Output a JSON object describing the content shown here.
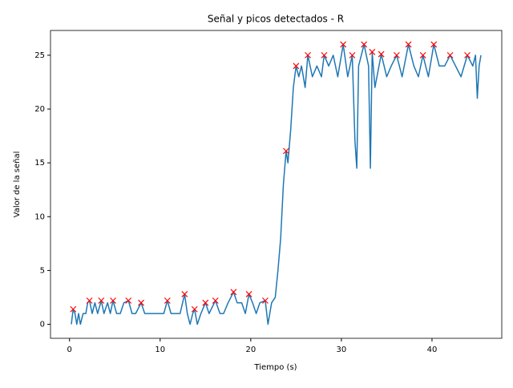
{
  "chart_data": {
    "type": "line",
    "title": "Señal y picos detectados - R",
    "x_label": "Tiempo (s)",
    "y_label": "Valor de la señal",
    "xlim": [
      -2.1,
      47.7
    ],
    "ylim": [
      -1.3,
      27.3
    ],
    "xticks": [
      0,
      10,
      20,
      30,
      40
    ],
    "yticks": [
      0,
      5,
      10,
      15,
      20,
      25
    ],
    "grid": false,
    "series": [
      {
        "color": "#1f77b4",
        "marker": "none",
        "x": [
          0.2,
          0.4,
          0.6,
          0.8,
          1.0,
          1.2,
          1.5,
          1.8,
          2.0,
          2.2,
          2.5,
          2.8,
          3.1,
          3.5,
          3.8,
          4.2,
          4.5,
          4.8,
          5.2,
          5.6,
          6.0,
          6.5,
          6.9,
          7.3,
          7.9,
          8.3,
          8.8,
          9.2,
          9.6,
          10.0,
          10.4,
          10.8,
          11.2,
          11.7,
          12.2,
          12.7,
          13.0,
          13.3,
          13.6,
          13.8,
          14.1,
          14.5,
          15.0,
          15.4,
          16.1,
          16.6,
          17.0,
          17.5,
          18.1,
          18.5,
          19.0,
          19.4,
          19.8,
          20.2,
          20.6,
          21.0,
          21.6,
          21.9,
          22.3,
          22.7,
          23.0,
          23.3,
          23.6,
          23.9,
          24.1,
          24.4,
          24.7,
          25.0,
          25.3,
          25.6,
          26.0,
          26.3,
          26.8,
          27.3,
          27.8,
          28.1,
          28.6,
          29.1,
          29.6,
          30.2,
          30.7,
          31.2,
          31.5,
          31.7,
          31.9,
          32.5,
          33.0,
          33.2,
          33.4,
          33.7,
          34.4,
          35.0,
          35.5,
          36.1,
          36.7,
          37.4,
          38.0,
          38.5,
          39.0,
          39.6,
          40.2,
          40.8,
          41.4,
          42.0,
          42.6,
          43.2,
          43.9,
          44.5,
          44.8,
          45.0,
          45.2,
          45.4
        ],
        "values": [
          0,
          1.4,
          1,
          0,
          1,
          0,
          1,
          1,
          2,
          2.2,
          1,
          2,
          1,
          2.2,
          1,
          2,
          1,
          2.2,
          1,
          1,
          2,
          2.2,
          1,
          1,
          2,
          1,
          1,
          1,
          1,
          1,
          1,
          2.2,
          1,
          1,
          1,
          2.8,
          1,
          0,
          1,
          1.4,
          0,
          1,
          2,
          1,
          2.2,
          1,
          1,
          2,
          3,
          2,
          2,
          1,
          2.8,
          2,
          1,
          2,
          2.2,
          0,
          2,
          2.5,
          5,
          8,
          13,
          16.1,
          15,
          18,
          22,
          24,
          23,
          24,
          22,
          25,
          23,
          24,
          23,
          25,
          24,
          25,
          23,
          26,
          23,
          25,
          17,
          14.5,
          24,
          26,
          24,
          14.5,
          25.3,
          22,
          25.1,
          23,
          24,
          25,
          23,
          26,
          24,
          23,
          25,
          23,
          26,
          24,
          24,
          25,
          24,
          23,
          25,
          24,
          25,
          21,
          24,
          25
        ]
      },
      {
        "color": "#ff0000",
        "marker": "x",
        "x": [
          0.4,
          2.2,
          3.5,
          4.8,
          6.5,
          7.9,
          10.8,
          12.7,
          13.8,
          15.0,
          16.1,
          18.1,
          19.8,
          21.6,
          23.9,
          25.0,
          26.3,
          28.1,
          30.2,
          31.2,
          32.5,
          33.4,
          34.4,
          36.1,
          37.4,
          39.0,
          40.2,
          42.0,
          43.9
        ],
        "values": [
          1.4,
          2.2,
          2.2,
          2.2,
          2.2,
          2.0,
          2.2,
          2.8,
          1.4,
          2.0,
          2.2,
          3.0,
          2.8,
          2.2,
          16.1,
          24.0,
          25.0,
          25.0,
          26.0,
          25.0,
          26.0,
          25.3,
          25.1,
          25.0,
          26.0,
          25.0,
          26.0,
          25.0,
          25.0
        ]
      }
    ]
  }
}
